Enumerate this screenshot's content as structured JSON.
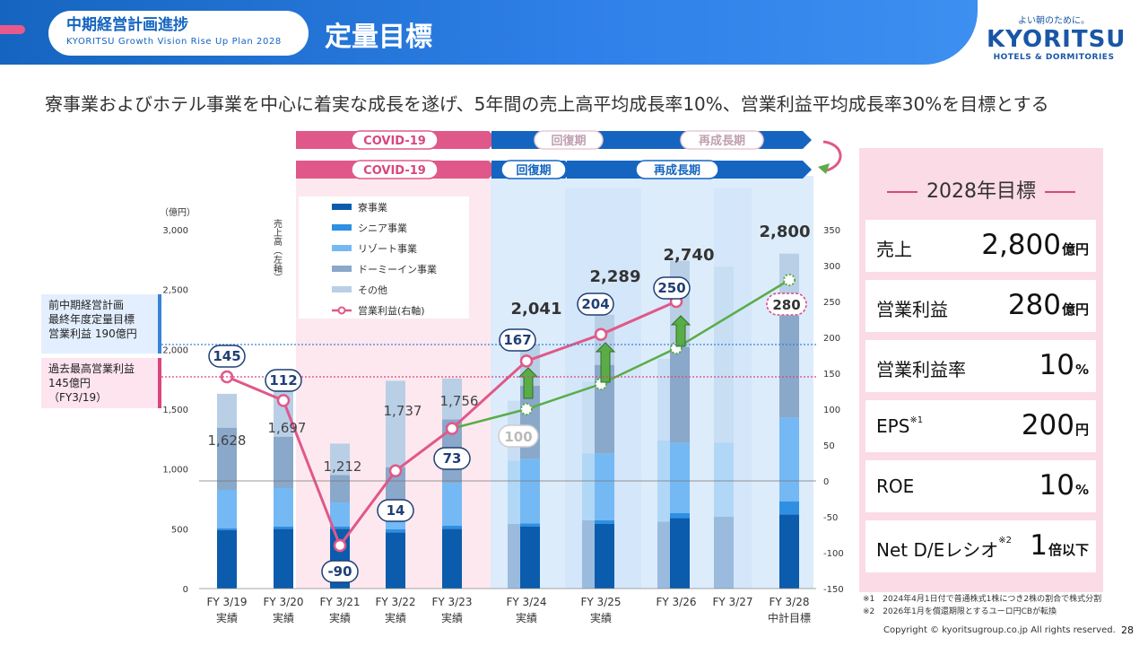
{
  "header": {
    "section_title": "中期経営計画進捗",
    "section_subtitle": "KYORITSU Growth Vision Rise Up Plan 2028",
    "page_title": "定量目標"
  },
  "logo": {
    "tagline": "よい朝のために。",
    "name": "KYORITSU",
    "sub": "HOTELS & DORMITORIES"
  },
  "headline": "寮事業およびホテル事業を中心に着実な成長を遂げ、5年間の売上高平均成長率10%、営業利益平均成長率30%を目標とする",
  "callouts": {
    "plan": [
      "前中期経営計画",
      "最終年度定量目標",
      "営業利益 190億円"
    ],
    "record": [
      "過去最高営業利益",
      "145億円",
      "（FY3/19）"
    ]
  },
  "colors": {
    "dormitory": "#0b5cad",
    "senior": "#2f8fe3",
    "resort": "#74b9f4",
    "dormy_inn": "#8aa8c9",
    "other": "#b9cfe6",
    "op_profit_line": "#e0588a",
    "plan_line": "#5aac47",
    "covid_bg": "#fde8ef",
    "recovery_bg": "#dcecfb",
    "accent_blue": "#1565c0",
    "accent_pink": "#d9467f"
  },
  "chart_data": {
    "type": "bar",
    "title": "",
    "ylabel_left": "（億円）",
    "ylabel_left_vertical": "売上高（左軸）",
    "ylim_left": [
      0,
      3000
    ],
    "yticks_left": [
      "0",
      "500",
      "1,000",
      "1,500",
      "2,000",
      "2,500",
      "3,000"
    ],
    "ylim_right": [
      -150,
      350
    ],
    "yticks_right": [
      "-150",
      "-100",
      "-50",
      "0",
      "50",
      "100",
      "150",
      "200",
      "250",
      "300",
      "350"
    ],
    "categories": [
      "FY 3/19",
      "FY 3/20",
      "FY 3/21",
      "FY 3/22",
      "FY 3/23",
      "FY 3/24",
      "FY 3/25",
      "FY 3/26",
      "FY 3/27",
      "FY 3/28"
    ],
    "category_sublabels": [
      "実績",
      "実績",
      "実績",
      "実績",
      "実績",
      "実績",
      "実績",
      "",
      "",
      "中計目標"
    ],
    "series": [
      {
        "name": "寮事業",
        "values": [
          490,
          500,
          500,
          470,
          500,
          520,
          540,
          590,
          null,
          620
        ]
      },
      {
        "name": "シニア事業",
        "values": [
          15,
          20,
          20,
          25,
          25,
          25,
          30,
          40,
          null,
          110
        ]
      },
      {
        "name": "リゾート事業",
        "values": [
          320,
          320,
          200,
          90,
          360,
          540,
          560,
          590,
          null,
          700
        ]
      },
      {
        "name": "ドーミーイン事業",
        "values": [
          520,
          430,
          230,
          430,
          530,
          610,
          740,
          800,
          null,
          850
        ]
      },
      {
        "name": "その他",
        "values": [
          283,
          427,
          262,
          722,
          341,
          346,
          419,
          720,
          null,
          520
        ]
      }
    ],
    "plan_bars": [
      {
        "category": "FY 3/24",
        "values": [
          540,
          0,
          530,
          0,
          500
        ]
      },
      {
        "category": "FY 3/25",
        "values": [
          570,
          0,
          560,
          0,
          600
        ]
      },
      {
        "category": "FY 3/26",
        "values": [
          560,
          0,
          680,
          0,
          680
        ]
      },
      {
        "category": "FY 3/27",
        "values": [
          600,
          0,
          620,
          0,
          1470
        ]
      }
    ],
    "revenue_totals": [
      "1,628",
      "1,697",
      "1,212",
      "1,737",
      "1,756",
      "2,041",
      "2,289",
      "2,740",
      "",
      "2,800"
    ],
    "legend": [
      "寮事業",
      "シニア事業",
      "リゾート事業",
      "ドーミーイン事業",
      "その他",
      "営業利益(右軸)"
    ],
    "op_profit_series": {
      "name": "営業利益(右軸)",
      "x": [
        "FY 3/19",
        "FY 3/20",
        "FY 3/21",
        "FY 3/22",
        "FY 3/23",
        "FY 3/24",
        "FY 3/25",
        "FY 3/26"
      ],
      "values": [
        145,
        112,
        -90,
        14,
        73,
        167,
        204,
        250
      ]
    },
    "op_profit_plan": {
      "x": [
        "FY 3/23",
        "FY 3/24",
        "FY 3/25",
        "FY 3/26",
        "FY 3/28"
      ],
      "values": [
        73,
        100,
        135,
        185,
        280
      ],
      "labels": [
        "",
        "100",
        "",
        "",
        "280"
      ]
    },
    "reference_lines": [
      {
        "value": 190,
        "axis": "right",
        "color": "#3b82d6"
      },
      {
        "value": 145,
        "axis": "right",
        "color": "#d9467f"
      }
    ],
    "phases_plan": [
      "COVID-19",
      "回復期",
      "再成長期"
    ],
    "phases_actual": [
      "COVID-19",
      "回復期",
      "再成長期"
    ],
    "grid": false,
    "legend_position": "top-left"
  },
  "targets": {
    "title": "2028年目標",
    "items": [
      {
        "name": "売上",
        "value": "2,800",
        "unit": "億円",
        "sup": ""
      },
      {
        "name": "営業利益",
        "value": "280",
        "unit": "億円",
        "sup": ""
      },
      {
        "name": "営業利益率",
        "value": "10",
        "unit": "%",
        "sup": ""
      },
      {
        "name": "EPS",
        "value": "200",
        "unit": "円",
        "sup": "※1"
      },
      {
        "name": "ROE",
        "value": "10",
        "unit": "%",
        "sup": ""
      },
      {
        "name": "Net D/Eレシオ",
        "value": "1",
        "unit": "倍以下",
        "sup": "※2"
      }
    ]
  },
  "footnotes": [
    "※1　2024年4月1日付で普通株式1株につき2株の割合で株式分割",
    "※2　2026年1月を償還期限とするユーロ円CBが転換"
  ],
  "copyright": "Copyright © kyoritsugroup.co.jp All rights reserved.",
  "page_number": "28"
}
